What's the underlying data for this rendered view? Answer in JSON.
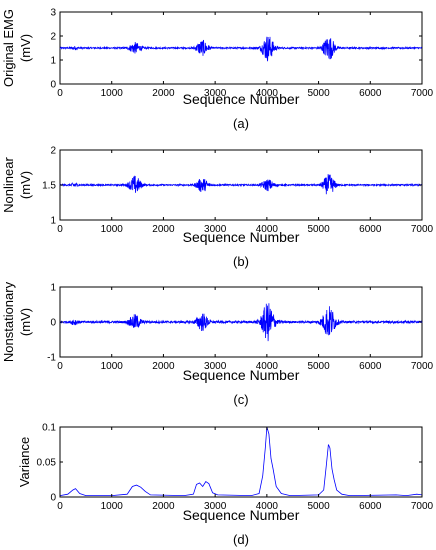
{
  "colors": {
    "series": "#0000ff",
    "axes": "#000000",
    "background": "#ffffff"
  },
  "chart_data": [
    {
      "type": "line",
      "panel_label": "(a)",
      "ylabel_lines": [
        "Original EMG",
        "(mV)"
      ],
      "xlabel": "Sequence Number",
      "xlim": [
        0,
        7000
      ],
      "ylim": [
        0,
        3
      ],
      "xticks": [
        "0",
        "1000",
        "2000",
        "3000",
        "4000",
        "5000",
        "6000",
        "7000"
      ],
      "yticks": [
        "0",
        "1",
        "2",
        "3"
      ],
      "grid": false,
      "baseline": 1.5,
      "noise": 0.03,
      "bursts": [
        {
          "center": 280,
          "width": 60,
          "amplitude": 0.06
        },
        {
          "center": 1450,
          "width": 110,
          "amplitude": 0.22
        },
        {
          "center": 2750,
          "width": 110,
          "amplitude": 0.32
        },
        {
          "center": 4020,
          "width": 110,
          "amplitude": 0.55
        },
        {
          "center": 5200,
          "width": 110,
          "amplitude": 0.5
        }
      ]
    },
    {
      "type": "line",
      "panel_label": "(b)",
      "ylabel_lines": [
        "Nonlinear",
        "(mV)"
      ],
      "xlabel": "Sequence Number",
      "xlim": [
        0,
        7000
      ],
      "ylim": [
        1,
        2
      ],
      "xticks": [
        "0",
        "1000",
        "2000",
        "3000",
        "4000",
        "5000",
        "6000",
        "7000"
      ],
      "yticks": [
        "1",
        "1.5",
        "2"
      ],
      "grid": false,
      "baseline": 1.5,
      "noise": 0.01,
      "bursts": [
        {
          "center": 280,
          "width": 60,
          "amplitude": 0.03
        },
        {
          "center": 1450,
          "width": 110,
          "amplitude": 0.13
        },
        {
          "center": 2750,
          "width": 110,
          "amplitude": 0.1
        },
        {
          "center": 4020,
          "width": 110,
          "amplitude": 0.08
        },
        {
          "center": 5200,
          "width": 110,
          "amplitude": 0.15
        }
      ]
    },
    {
      "type": "line",
      "panel_label": "(c)",
      "ylabel_lines": [
        "Nonstationary",
        "(mV)"
      ],
      "xlabel": "Sequence Number",
      "xlim": [
        0,
        7000
      ],
      "ylim": [
        -1,
        1
      ],
      "xticks": [
        "0",
        "1000",
        "2000",
        "3000",
        "4000",
        "5000",
        "6000",
        "7000"
      ],
      "yticks": [
        "-1",
        "0",
        "1"
      ],
      "grid": false,
      "baseline": 0,
      "noise": 0.03,
      "bursts": [
        {
          "center": 280,
          "width": 60,
          "amplitude": 0.08
        },
        {
          "center": 1450,
          "width": 110,
          "amplitude": 0.2
        },
        {
          "center": 2750,
          "width": 110,
          "amplitude": 0.25
        },
        {
          "center": 4020,
          "width": 120,
          "amplitude": 0.55
        },
        {
          "center": 5200,
          "width": 120,
          "amplitude": 0.45
        }
      ]
    },
    {
      "type": "line",
      "panel_label": "(d)",
      "ylabel_lines": [
        "Variance"
      ],
      "xlabel": "Sequence Number",
      "xlim": [
        0,
        7000
      ],
      "ylim": [
        0,
        0.1
      ],
      "xticks": [
        "0",
        "1000",
        "2000",
        "3000",
        "4000",
        "5000",
        "6000",
        "7000"
      ],
      "yticks": [
        "0",
        "0.05",
        "0.1"
      ],
      "grid": false,
      "points": [
        [
          0,
          0.002
        ],
        [
          150,
          0.004
        ],
        [
          250,
          0.01
        ],
        [
          300,
          0.012
        ],
        [
          380,
          0.005
        ],
        [
          500,
          0.002
        ],
        [
          1000,
          0.002
        ],
        [
          1300,
          0.004
        ],
        [
          1400,
          0.015
        ],
        [
          1480,
          0.017
        ],
        [
          1560,
          0.014
        ],
        [
          1650,
          0.008
        ],
        [
          1750,
          0.003
        ],
        [
          2400,
          0.002
        ],
        [
          2580,
          0.004
        ],
        [
          2640,
          0.018
        ],
        [
          2700,
          0.02
        ],
        [
          2760,
          0.015
        ],
        [
          2820,
          0.022
        ],
        [
          2880,
          0.019
        ],
        [
          2950,
          0.006
        ],
        [
          3050,
          0.003
        ],
        [
          3700,
          0.002
        ],
        [
          3850,
          0.005
        ],
        [
          3920,
          0.03
        ],
        [
          3970,
          0.07
        ],
        [
          4000,
          0.1
        ],
        [
          4040,
          0.09
        ],
        [
          4080,
          0.055
        ],
        [
          4120,
          0.04
        ],
        [
          4180,
          0.015
        ],
        [
          4280,
          0.005
        ],
        [
          4450,
          0.002
        ],
        [
          5000,
          0.003
        ],
        [
          5100,
          0.01
        ],
        [
          5150,
          0.045
        ],
        [
          5190,
          0.075
        ],
        [
          5220,
          0.07
        ],
        [
          5260,
          0.04
        ],
        [
          5300,
          0.025
        ],
        [
          5350,
          0.01
        ],
        [
          5450,
          0.004
        ],
        [
          5600,
          0.002
        ],
        [
          6500,
          0.003
        ],
        [
          6700,
          0.002
        ],
        [
          6900,
          0.004
        ],
        [
          7000,
          0.003
        ]
      ]
    }
  ]
}
